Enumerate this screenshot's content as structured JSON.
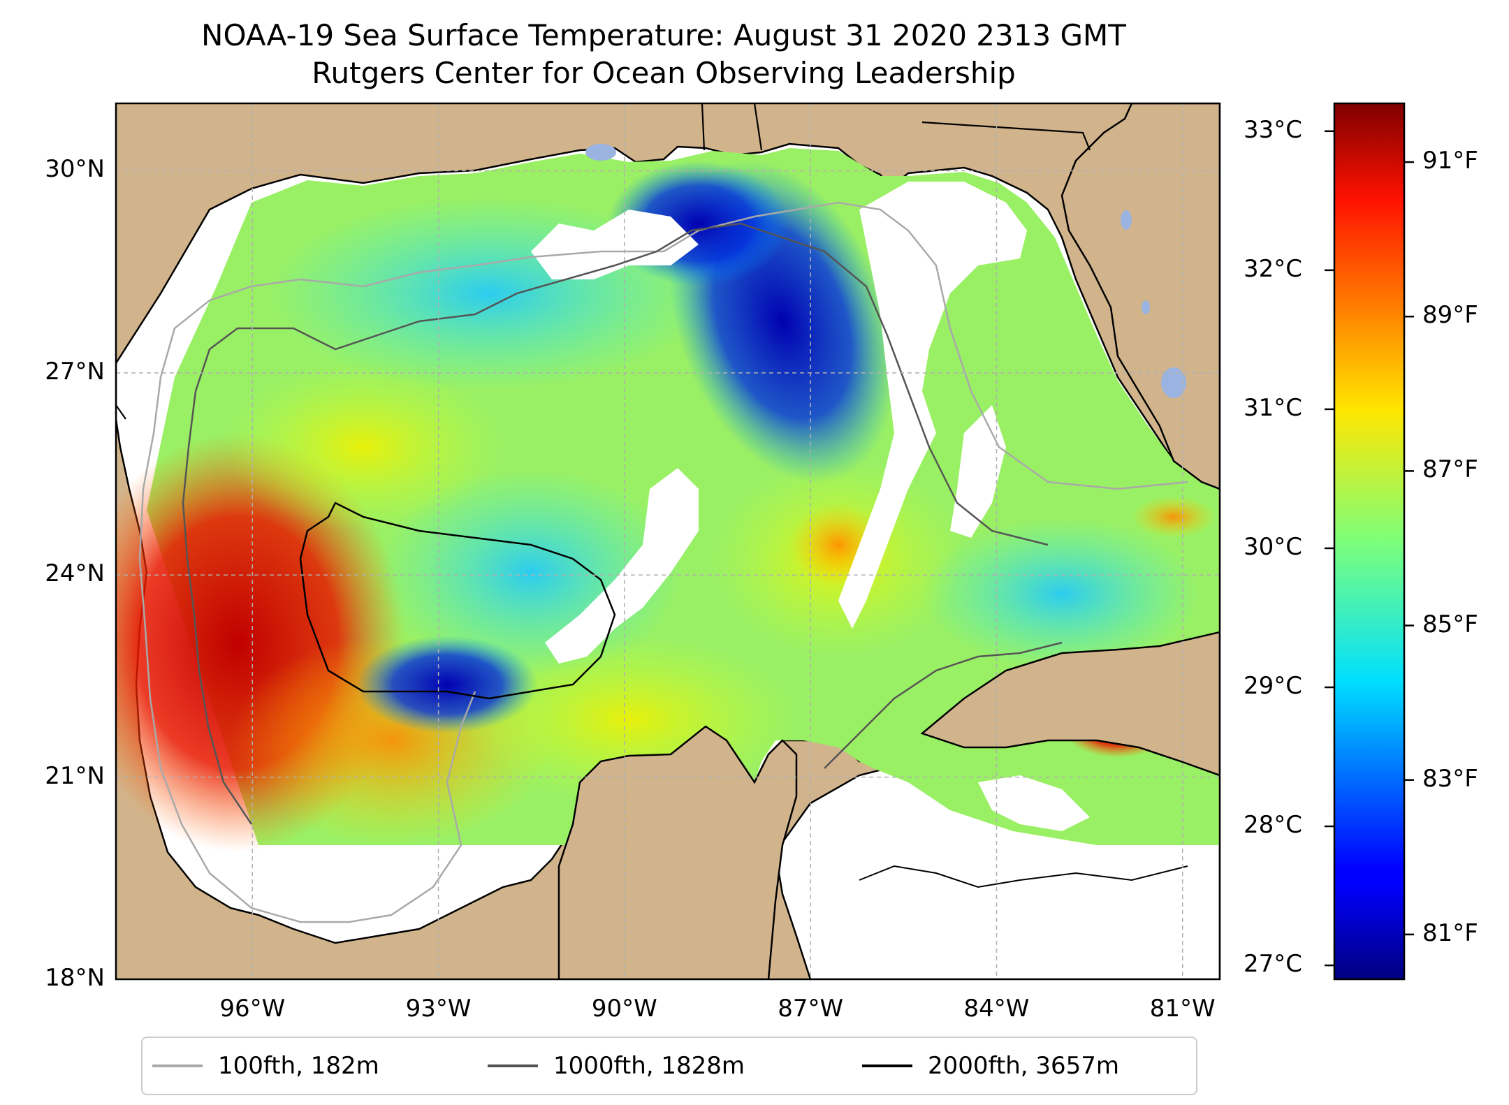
{
  "title_line1": "NOAA-19 Sea Surface Temperature: August 31 2020 2313 GMT",
  "title_line2": "Rutgers Center for Ocean Observing Leadership",
  "chart_data": {
    "type": "heatmap",
    "map_extent": {
      "lon_min": -98.2,
      "lon_max": -80.4,
      "lat_min": 18.0,
      "lat_max": 31.0
    },
    "lat_ticks": [
      {
        "value": 30,
        "label": "30°N"
      },
      {
        "value": 27,
        "label": "27°N"
      },
      {
        "value": 24,
        "label": "24°N"
      },
      {
        "value": 21,
        "label": "21°N"
      },
      {
        "value": 18,
        "label": "18°N"
      }
    ],
    "lon_ticks": [
      {
        "value": -96,
        "label": "96°W"
      },
      {
        "value": -93,
        "label": "93°W"
      },
      {
        "value": -90,
        "label": "90°W"
      },
      {
        "value": -87,
        "label": "87°W"
      },
      {
        "value": -84,
        "label": "84°W"
      },
      {
        "value": -81,
        "label": "81°W"
      }
    ],
    "colorbar": {
      "celsius_range": [
        26.9,
        33.2
      ],
      "celsius_ticks": [
        {
          "value": 33,
          "label": "33°C"
        },
        {
          "value": 32,
          "label": "32°C"
        },
        {
          "value": 31,
          "label": "31°C"
        },
        {
          "value": 30,
          "label": "30°C"
        },
        {
          "value": 29,
          "label": "29°C"
        },
        {
          "value": 28,
          "label": "28°C"
        },
        {
          "value": 27,
          "label": "27°C"
        }
      ],
      "fahrenheit_ticks": [
        {
          "value": 91,
          "label": "91°F"
        },
        {
          "value": 89,
          "label": "89°F"
        },
        {
          "value": 87,
          "label": "87°F"
        },
        {
          "value": 85,
          "label": "85°F"
        },
        {
          "value": 83,
          "label": "83°F"
        },
        {
          "value": 81,
          "label": "81°F"
        }
      ],
      "colormap": "jet"
    },
    "legend": [
      {
        "label": "100fth, 182m",
        "color": "#a9a9a9"
      },
      {
        "label": "1000fth, 1828m",
        "color": "#555555"
      },
      {
        "label": "2000fth, 3657m",
        "color": "#000000"
      }
    ]
  },
  "colors": {
    "land": "#d2b48c",
    "lakes": "#9ab3e0",
    "nodata": "#ffffff"
  }
}
